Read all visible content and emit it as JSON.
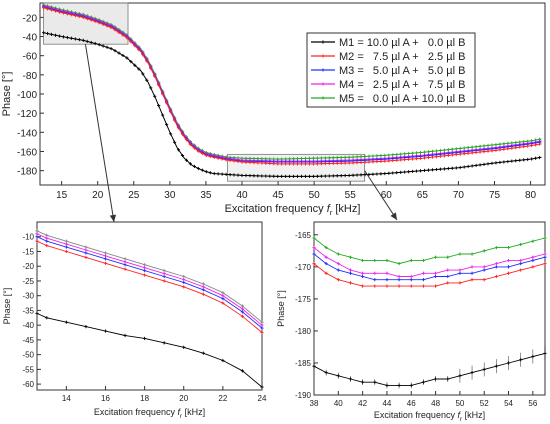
{
  "chart_data": [
    {
      "id": "main",
      "type": "line",
      "xlabel_main": "Excitation frequency ",
      "xlabel_sym": "f",
      "xlabel_sub": "r",
      "xlabel_unit": " [kHz]",
      "ylabel": "Phase [°]",
      "xlim": [
        12,
        82
      ],
      "ylim": [
        -195,
        -5
      ],
      "xticks": [
        15,
        20,
        25,
        30,
        35,
        40,
        45,
        50,
        55,
        60,
        65,
        70,
        75,
        80
      ],
      "yticks": [
        -20,
        -40,
        -60,
        -80,
        -100,
        -120,
        -140,
        -160,
        -180
      ],
      "legend_position": "top-right",
      "series": [
        {
          "name": "M1 = 10.0 µl A +   0.0 µl B",
          "color": "#000000"
        },
        {
          "name": "M2 =   7.5 µl A +   2.5 µl B",
          "color": "#ff2020"
        },
        {
          "name": "M3 =   5.0 µl A +   5.0 µl B",
          "color": "#2030ff"
        },
        {
          "name": "M4 =   2.5 µl A +   7.5 µl B",
          "color": "#ee22ee"
        },
        {
          "name": "M5 =   0.0 µl A + 10.0 µl B",
          "color": "#22aa22"
        }
      ],
      "curves": {
        "x": [
          12.5,
          15,
          18,
          20,
          22,
          24,
          26,
          27,
          28,
          29,
          30,
          31,
          32,
          33,
          34,
          35,
          36,
          38,
          40,
          45,
          50,
          55,
          60,
          65,
          70,
          75,
          80,
          81.5
        ],
        "M1": [
          -36,
          -40,
          -44,
          -48,
          -53,
          -62,
          -76,
          -88,
          -104,
          -122,
          -140,
          -156,
          -167,
          -174,
          -178,
          -181,
          -183,
          -184,
          -185,
          -186,
          -186,
          -185,
          -183,
          -180,
          -177,
          -172,
          -168,
          -166
        ],
        "M2": [
          -10,
          -15,
          -20,
          -25,
          -31,
          -41,
          -56,
          -68,
          -83,
          -100,
          -117,
          -133,
          -145,
          -154,
          -160,
          -164,
          -166,
          -169,
          -171,
          -173,
          -173,
          -172,
          -170,
          -167,
          -163,
          -159,
          -154,
          -152
        ],
        "M3": [
          -9,
          -14,
          -19,
          -24,
          -30,
          -40,
          -55,
          -67,
          -82,
          -99,
          -116,
          -132,
          -144,
          -153,
          -159,
          -163,
          -165,
          -168,
          -170,
          -171,
          -171,
          -170,
          -168,
          -165,
          -161,
          -157,
          -152,
          -150
        ],
        "M4": [
          -8,
          -13,
          -18,
          -23,
          -29,
          -39,
          -54,
          -66,
          -81,
          -98,
          -115,
          -131,
          -143,
          -152,
          -158,
          -162,
          -164,
          -167,
          -169,
          -170,
          -170,
          -169,
          -167,
          -164,
          -160,
          -156,
          -151,
          -149
        ],
        "M5": [
          -7,
          -12,
          -17,
          -22,
          -28,
          -38,
          -53,
          -65,
          -80,
          -97,
          -114,
          -130,
          -142,
          -151,
          -157,
          -161,
          -163,
          -166,
          -167,
          -168,
          -167,
          -166,
          -164,
          -161,
          -157,
          -153,
          -149,
          -147
        ]
      }
    },
    {
      "id": "left-zoom",
      "type": "line",
      "xlabel_main": "Excitation frequency ",
      "xlabel_sym": "f",
      "xlabel_sub": "r",
      "xlabel_unit": " [kHz]",
      "ylabel": "Phase [°]",
      "xlim": [
        12.5,
        24
      ],
      "ylim": [
        -62,
        -5
      ],
      "xticks": [
        14,
        16,
        18,
        20,
        22,
        24
      ],
      "yticks": [
        -10,
        -15,
        -20,
        -25,
        -30,
        -35,
        -40,
        -45,
        -50,
        -55,
        -60
      ],
      "x": [
        12.5,
        13,
        14,
        15,
        16,
        17,
        18,
        19,
        20,
        21,
        22,
        23,
        24
      ],
      "series": [
        {
          "key": "M1",
          "color": "#000000",
          "values": [
            -36,
            -37.5,
            -39,
            -40.5,
            -42,
            -43.5,
            -44.5,
            -46,
            -47.5,
            -49.5,
            -52,
            -55.5,
            -61
          ]
        },
        {
          "key": "M2",
          "color": "#ff2020",
          "values": [
            -11.5,
            -13,
            -15,
            -17,
            -19,
            -21,
            -23,
            -25,
            -27,
            -29.5,
            -32.5,
            -37,
            -42.5
          ]
        },
        {
          "key": "M3",
          "color": "#2030ff",
          "values": [
            -10,
            -11.5,
            -13.5,
            -15.5,
            -17.5,
            -19.5,
            -21.5,
            -23.5,
            -25.5,
            -28,
            -31,
            -35.5,
            -41
          ]
        },
        {
          "key": "M4",
          "color": "#ee22ee",
          "values": [
            -9,
            -10.5,
            -12.5,
            -14.5,
            -16.5,
            -18.5,
            -20.5,
            -22.5,
            -24.5,
            -27,
            -30,
            -34.5,
            -40
          ]
        },
        {
          "key": "M5",
          "color": "#888888",
          "values": [
            -8,
            -9.5,
            -11.5,
            -13.5,
            -15.5,
            -17.5,
            -19.5,
            -21.5,
            -23.5,
            -26,
            -29,
            -33.5,
            -39
          ]
        }
      ]
    },
    {
      "id": "right-zoom",
      "type": "line",
      "xlabel_main": "Excitation frequency ",
      "xlabel_sym": "f",
      "xlabel_sub": "r",
      "xlabel_unit": " [kHz]",
      "ylabel": "Phase [°]",
      "xlim": [
        38,
        57
      ],
      "ylim": [
        -190,
        -163
      ],
      "xticks": [
        38,
        40,
        42,
        44,
        46,
        48,
        50,
        52,
        54,
        56
      ],
      "yticks": [
        -165,
        -170,
        -175,
        -180,
        -185,
        -190
      ],
      "x": [
        38,
        39,
        40,
        41,
        42,
        43,
        44,
        45,
        46,
        47,
        48,
        49,
        50,
        51,
        52,
        53,
        54,
        55,
        56,
        57
      ],
      "series": [
        {
          "key": "M1",
          "color": "#000000",
          "values": [
            -185.5,
            -186.5,
            -187,
            -187.5,
            -188,
            -188,
            -188.5,
            -188.5,
            -188.5,
            -188,
            -187.5,
            -187.5,
            -187,
            -186.5,
            -186,
            -185.5,
            -185,
            -184.5,
            -184,
            -183.5
          ]
        },
        {
          "key": "M2",
          "color": "#ff2020",
          "values": [
            -169.5,
            -171,
            -172,
            -172.5,
            -173,
            -173,
            -173,
            -173,
            -173,
            -173,
            -173,
            -172.5,
            -172.5,
            -172,
            -172,
            -171.5,
            -171,
            -170.5,
            -170,
            -169.5
          ]
        },
        {
          "key": "M3",
          "color": "#2030ff",
          "values": [
            -168,
            -169.5,
            -170.5,
            -171,
            -171.5,
            -172,
            -172,
            -172,
            -172,
            -172,
            -171.5,
            -171.5,
            -171,
            -171,
            -170.5,
            -170,
            -170,
            -169.5,
            -169,
            -168.5
          ]
        },
        {
          "key": "M4",
          "color": "#ee22ee",
          "values": [
            -167,
            -168.5,
            -169.5,
            -170.5,
            -171,
            -171,
            -171,
            -171.5,
            -171.5,
            -171,
            -171,
            -170.5,
            -170.5,
            -170,
            -170,
            -169.5,
            -169,
            -169,
            -168.5,
            -168
          ]
        },
        {
          "key": "M5",
          "color": "#22aa22",
          "values": [
            -165.5,
            -167,
            -168,
            -168.5,
            -169,
            -169,
            -169,
            -169.5,
            -169,
            -169,
            -168.5,
            -168.5,
            -168,
            -168,
            -167.5,
            -167,
            -167,
            -166.5,
            -166,
            -165.5
          ]
        }
      ]
    }
  ]
}
